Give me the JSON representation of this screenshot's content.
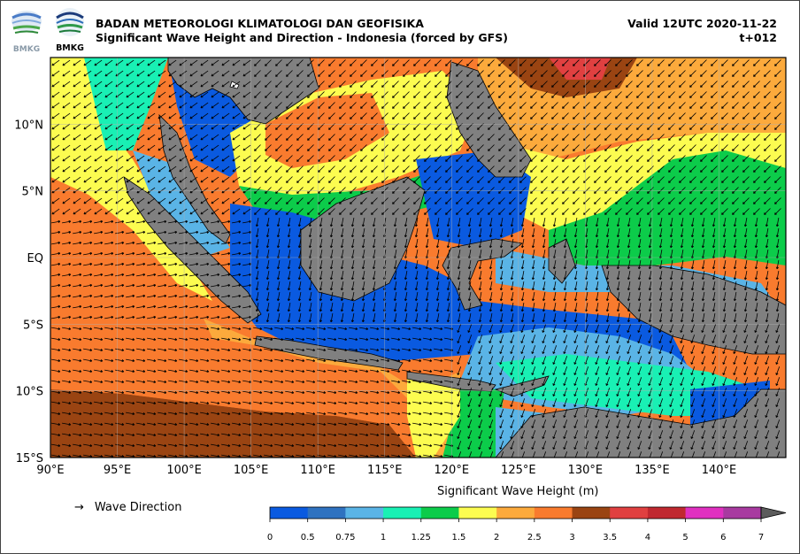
{
  "header": {
    "logo1_text": "BMKG",
    "logo2_text": "BMKG",
    "title_line1": "BADAN METEOROLOGI KLIMATOLOGI DAN GEOFISIKA",
    "title_line2": "Significant Wave Height and Direction - Indonesia (forced by GFS)",
    "valid": "Valid 12UTC 2020-11-22",
    "timestep": "t+012"
  },
  "map": {
    "lon_ticks": [
      "90°E",
      "95°E",
      "100°E",
      "105°E",
      "110°E",
      "115°E",
      "120°E",
      "125°E",
      "130°E",
      "135°E",
      "140°E"
    ],
    "lat_ticks": [
      "10°N",
      "5°N",
      "EQ",
      "5°S",
      "10°S",
      "15°S"
    ],
    "lon_range": [
      90,
      145
    ],
    "lat_range": [
      -15,
      15
    ],
    "land_color": "#808080",
    "arrow_color": "#000000"
  },
  "legend": {
    "arrow_glyph": "→",
    "arrow_label": "Wave Direction",
    "colorbar_title": "Significant Wave Height (m)",
    "levels": [
      "0",
      "0.5",
      "0.75",
      "1",
      "1.25",
      "1.5",
      "2",
      "2.5",
      "3",
      "3.5",
      "4",
      "5",
      "6",
      "7"
    ],
    "colors": [
      "#0a5ae0",
      "#2f72c0",
      "#5ab4e6",
      "#19f0b4",
      "#0ccc4a",
      "#fcfc50",
      "#fcaa3c",
      "#f97b2e",
      "#9a4412",
      "#e04040",
      "#c02830",
      "#e030c0",
      "#a83aa0",
      "#5c5c5c"
    ]
  }
}
